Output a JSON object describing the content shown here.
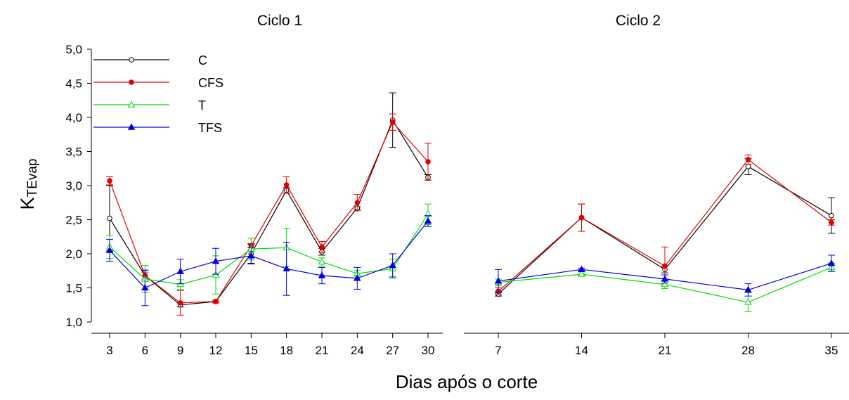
{
  "chart_data": {
    "type": "line",
    "xlabel": "Dias após o corte",
    "ylabel": {
      "main": "K",
      "sub": "TEvap"
    },
    "ylim": [
      1.0,
      5.0
    ],
    "yticks": [
      "1,0",
      "1,5",
      "2,0",
      "2,5",
      "3,0",
      "3,5",
      "4,0",
      "4,5",
      "5,0"
    ],
    "grid": false,
    "legend_position": "top-left",
    "colors": {
      "C": "#000000",
      "CFS": "#e00000",
      "T": "#00dd00",
      "TFS": "#0000dd"
    },
    "panels": [
      {
        "title": "Ciclo 1",
        "x": [
          3,
          6,
          9,
          12,
          15,
          18,
          21,
          24,
          27,
          30
        ],
        "xtick_labels": [
          "3",
          "6",
          "9",
          "12",
          "15",
          "18",
          "21",
          "24",
          "27",
          "30"
        ],
        "series": [
          {
            "name": "C",
            "marker": "open-circle",
            "values": [
              2.52,
              1.68,
              1.25,
              1.3,
              2.0,
              2.93,
              2.03,
              2.67,
              3.96,
              3.12
            ],
            "errors": [
              0.48,
              0.08,
              0.03,
              0.02,
              0.14,
              0.04,
              0.05,
              0.02,
              0.4,
              0.04
            ]
          },
          {
            "name": "CFS",
            "marker": "filled-circle",
            "values": [
              3.07,
              1.68,
              1.28,
              1.3,
              2.12,
              3.01,
              2.1,
              2.75,
              3.93,
              3.35
            ],
            "errors": [
              0.06,
              0.05,
              0.18,
              0.02,
              0.03,
              0.12,
              0.08,
              0.12,
              0.12,
              0.27
            ]
          },
          {
            "name": "T",
            "marker": "open-triangle",
            "values": [
              2.1,
              1.63,
              1.55,
              1.69,
              2.07,
              2.09,
              1.88,
              1.71,
              1.78,
              2.58
            ],
            "errors": [
              0.17,
              0.2,
              0.07,
              0.28,
              0.16,
              0.28,
              0.06,
              0.05,
              0.14,
              0.15
            ]
          },
          {
            "name": "TFS",
            "marker": "filled-triangle",
            "values": [
              2.05,
              1.5,
              1.74,
              1.89,
              1.97,
              1.78,
              1.68,
              1.64,
              1.83,
              2.48
            ],
            "errors": [
              0.16,
              0.26,
              0.18,
              0.19,
              0.12,
              0.39,
              0.12,
              0.16,
              0.17,
              0.08
            ]
          }
        ]
      },
      {
        "title": "Ciclo 2",
        "x": [
          7,
          14,
          21,
          28,
          35
        ],
        "xtick_labels": [
          "7",
          "14",
          "21",
          "28",
          "35"
        ],
        "series": [
          {
            "name": "C",
            "marker": "open-circle",
            "values": [
              1.41,
              2.53,
              1.77,
              3.28,
              2.56
            ],
            "errors": [
              0.03,
              0.2,
              0.05,
              0.12,
              0.26
            ]
          },
          {
            "name": "CFS",
            "marker": "filled-circle",
            "values": [
              1.45,
              2.53,
              1.82,
              3.38,
              2.46
            ],
            "errors": [
              0.05,
              0.2,
              0.28,
              0.07,
              0.04
            ]
          },
          {
            "name": "T",
            "marker": "open-triangle",
            "values": [
              1.58,
              1.7,
              1.55,
              1.29,
              1.8
            ],
            "errors": [
              0.05,
              0.02,
              0.06,
              0.14,
              0.06
            ]
          },
          {
            "name": "TFS",
            "marker": "filled-triangle",
            "values": [
              1.6,
              1.77,
              1.63,
              1.47,
              1.86
            ],
            "errors": [
              0.17,
              0.02,
              0.06,
              0.09,
              0.12
            ]
          }
        ]
      }
    ]
  }
}
